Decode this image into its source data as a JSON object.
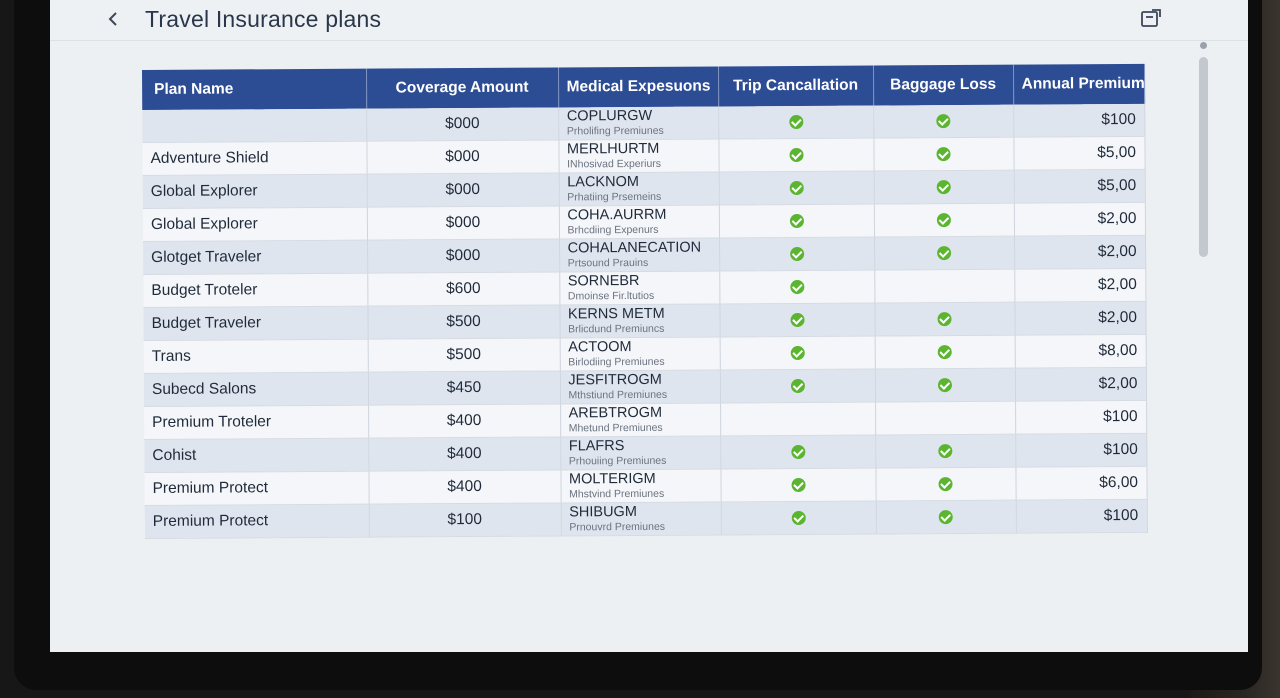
{
  "app": {
    "title": "Travel Insurance plans",
    "back_icon": "chevron-left-icon",
    "share_icon": "share-icon"
  },
  "colors": {
    "header_bg": "#2c4c94",
    "check_green": "#5cb531",
    "row_alt": "#dfe5ee"
  },
  "table": {
    "columns": [
      "Plan Name",
      "Coverage Amount",
      "Medical Expesuons",
      "Trip Cancallation",
      "Baggage Loss",
      "Annual Premium"
    ],
    "rows": [
      {
        "plan": "",
        "coverage": "$000",
        "medical": "COPLURGW",
        "medical_sub": "Prholifing Premiunes",
        "trip": true,
        "baggage": true,
        "premium": "$100"
      },
      {
        "plan": "Adventure Shield",
        "coverage": "$000",
        "medical": "MERLHURTM",
        "medical_sub": "INhosivad Experiurs",
        "trip": true,
        "baggage": true,
        "premium": "$5,00"
      },
      {
        "plan": "Global Explorer",
        "coverage": "$000",
        "medical": "LACKNOM",
        "medical_sub": "Prhatiing Prsemeins",
        "trip": true,
        "baggage": true,
        "premium": "$5,00"
      },
      {
        "plan": "Global Explorer",
        "coverage": "$000",
        "medical": "COHA.AURRM",
        "medical_sub": "Brhcdiing Expenurs",
        "trip": true,
        "baggage": true,
        "premium": "$2,00"
      },
      {
        "plan": "Glotget Traveler",
        "coverage": "$000",
        "medical": "COHALANECATION",
        "medical_sub": "Prtsound Prauins",
        "trip": true,
        "baggage": true,
        "premium": "$2,00"
      },
      {
        "plan": "Budget Troteler",
        "coverage": "$600",
        "medical": "SORNEBR",
        "medical_sub": "Dmoinse Fir.ltutios",
        "trip": true,
        "baggage": false,
        "premium": "$2,00"
      },
      {
        "plan": "Budget Traveler",
        "coverage": "$500",
        "medical": "KERNS METM",
        "medical_sub": "Brlicdund Premiuncs",
        "trip": true,
        "baggage": true,
        "premium": "$2,00"
      },
      {
        "plan": "Trans",
        "coverage": "$500",
        "medical": "ACTOOM",
        "medical_sub": "Birlodiing Premiunes",
        "trip": true,
        "baggage": true,
        "premium": "$8,00"
      },
      {
        "plan": "Subecd Salons",
        "coverage": "$450",
        "medical": "JESFITROGM",
        "medical_sub": "Mthstiund Premiunes",
        "trip": true,
        "baggage": true,
        "premium": "$2,00"
      },
      {
        "plan": "Premium Troteler",
        "coverage": "$400",
        "medical": "AREBTROGM",
        "medical_sub": "Mhetund Premiunes",
        "trip": false,
        "baggage": false,
        "premium": "$100"
      },
      {
        "plan": "Cohist",
        "coverage": "$400",
        "medical": "FLAFRS",
        "medical_sub": "Prhouiing Premiunes",
        "trip": true,
        "baggage": true,
        "premium": "$100"
      },
      {
        "plan": "Premium Protect",
        "coverage": "$400",
        "medical": "MOLTERIGM",
        "medical_sub": "Mhstvind Premiunes",
        "trip": true,
        "baggage": true,
        "premium": "$6,00"
      },
      {
        "plan": "Premium Protect",
        "coverage": "$100",
        "medical": "SHIBUGM",
        "medical_sub": "Prnouvrd Premiunes",
        "trip": true,
        "baggage": true,
        "premium": "$100"
      }
    ]
  }
}
